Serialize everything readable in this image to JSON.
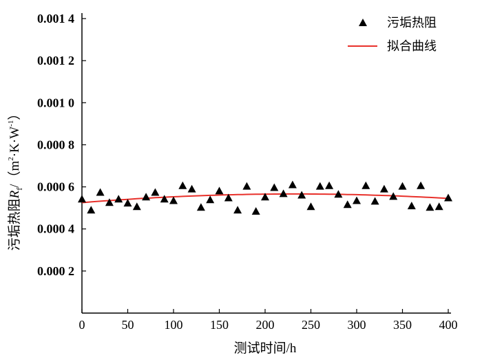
{
  "chart_data": {
    "type": "scatter",
    "title": "",
    "xlabel": "测试时间/h",
    "ylabel": "污垢热阻R_f/（m²·K·W⁻¹）",
    "ylabel_parts": {
      "main": "污垢热阻",
      "var": "R",
      "sub": "f",
      "unit": "/（m",
      "sup1": "2",
      "unit2": "·K·W",
      "sup2": "-1",
      "close": "）"
    },
    "xlim": [
      0,
      400
    ],
    "ylim": [
      0,
      0.0014
    ],
    "xticks": [
      0,
      50,
      100,
      150,
      200,
      250,
      300,
      350,
      400
    ],
    "xtick_labels": [
      "0",
      "50",
      "100",
      "150",
      "200",
      "250",
      "300",
      "350",
      "400"
    ],
    "yticks": [
      0.0002,
      0.0004,
      0.0006,
      0.0008,
      0.001,
      0.0012,
      0.0014
    ],
    "ytick_labels": [
      "0.000 2",
      "0.000 4",
      "0.000 6",
      "0.000 8",
      "0.001 0",
      "0.001 2",
      "0.001 4"
    ],
    "grid": false,
    "legend_position": "top-right",
    "series": [
      {
        "name": "污垢热阻",
        "kind": "scatter",
        "marker": "triangle",
        "color": "#000000",
        "x": [
          0,
          10,
          20,
          30,
          40,
          50,
          60,
          70,
          80,
          90,
          100,
          110,
          120,
          130,
          140,
          150,
          160,
          170,
          180,
          190,
          200,
          210,
          220,
          230,
          240,
          250,
          260,
          270,
          280,
          290,
          300,
          310,
          320,
          330,
          340,
          350,
          360,
          370,
          380,
          390,
          400
        ],
        "y": [
          0.000542,
          0.00049,
          0.000574,
          0.000526,
          0.000542,
          0.000523,
          0.000506,
          0.000552,
          0.000574,
          0.000542,
          0.000535,
          0.000606,
          0.00059,
          0.000503,
          0.000539,
          0.000581,
          0.000548,
          0.00049,
          0.000603,
          0.000484,
          0.000552,
          0.000597,
          0.000568,
          0.00061,
          0.000561,
          0.000506,
          0.000603,
          0.000606,
          0.000565,
          0.000516,
          0.000535,
          0.000606,
          0.000532,
          0.00059,
          0.000555,
          0.000603,
          0.00051,
          0.000606,
          0.000503,
          0.000506,
          0.000548
        ]
      },
      {
        "name": "拟合曲线",
        "kind": "line",
        "color": "#e8302a",
        "fit": "quadratic",
        "coefficients_e3": [
          0.525,
          0.000354,
          -7.6e-07
        ]
      }
    ]
  }
}
